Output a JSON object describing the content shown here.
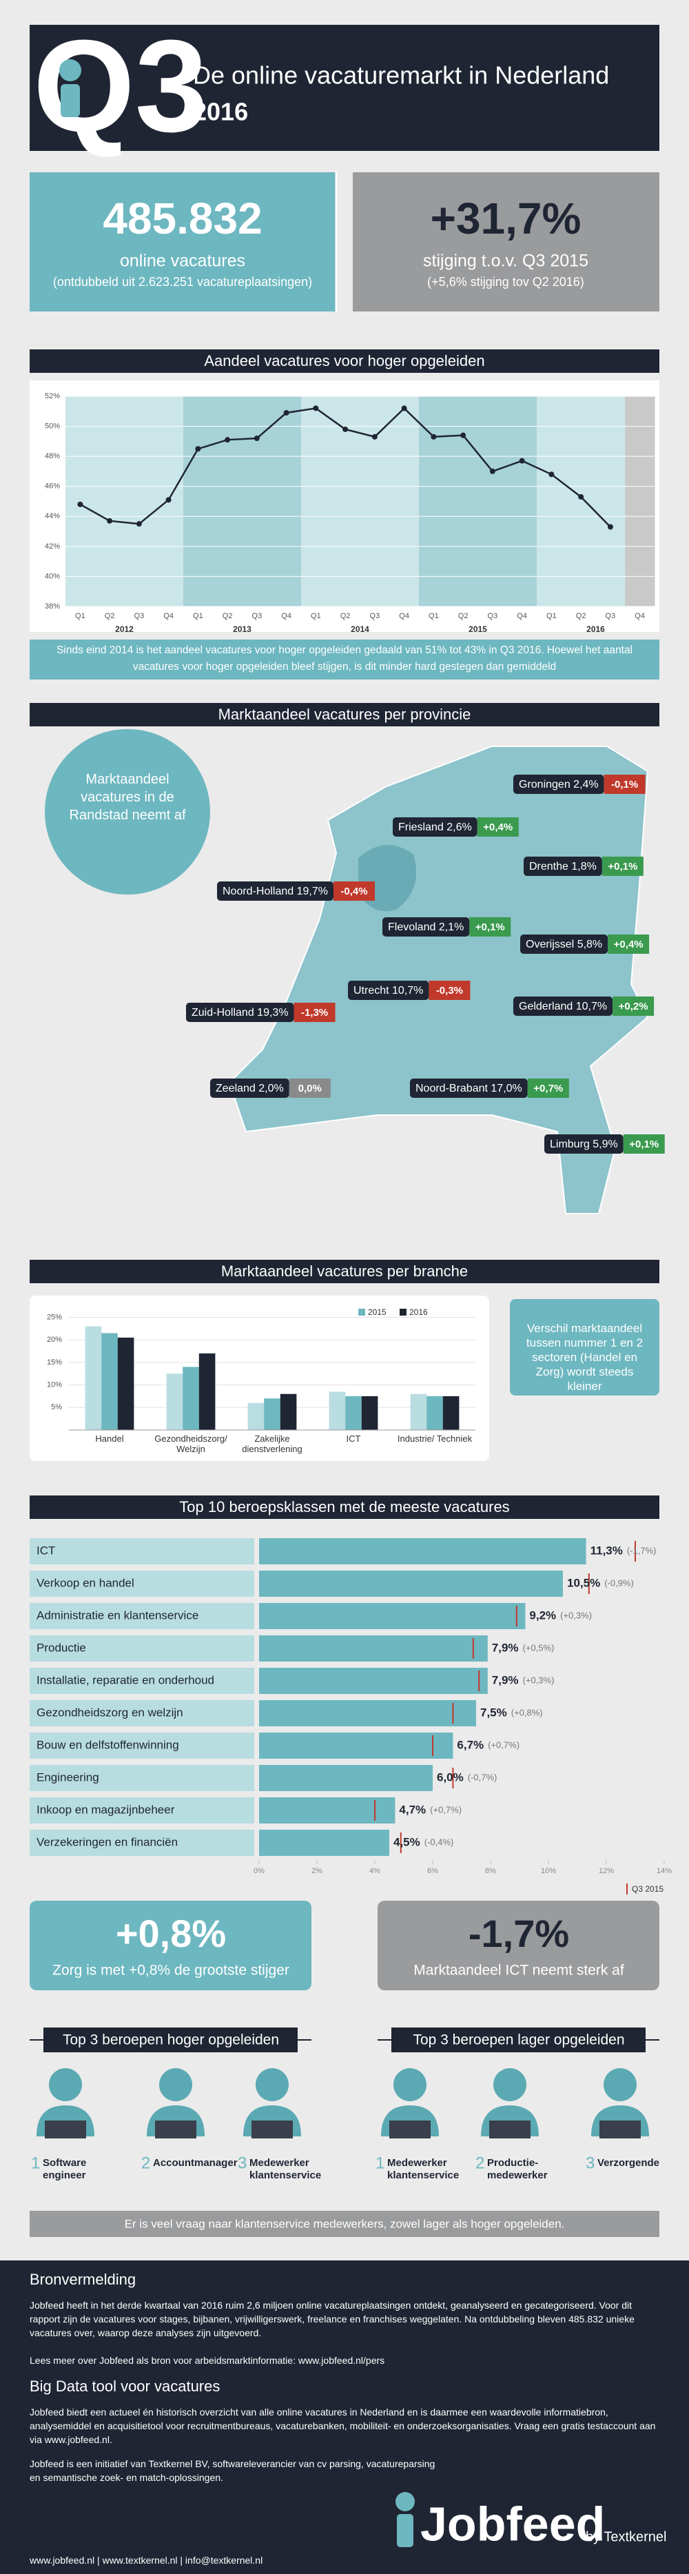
{
  "header": {
    "quarter": "Q3",
    "title": "De online vacaturemarkt in Nederland",
    "year": "2016"
  },
  "stats": [
    {
      "value": "485.832",
      "label": "online vacatures",
      "note": "(ontdubbeld uit 2.623.251 vacatureplaatsingen)"
    },
    {
      "value": "+31,7%",
      "label": "stijging t.o.v. Q3 2015",
      "note": "(+5,6% stijging tov Q2 2016)"
    }
  ],
  "chart_data": [
    {
      "type": "line",
      "title": "Aandeel vacatures voor hoger opgeleiden",
      "categories": [
        "Q1",
        "Q2",
        "Q3",
        "Q4",
        "Q1",
        "Q2",
        "Q3",
        "Q4",
        "Q1",
        "Q2",
        "Q3",
        "Q4",
        "Q1",
        "Q2",
        "Q3",
        "Q4",
        "Q1",
        "Q2",
        "Q3",
        "Q4"
      ],
      "year_labels": [
        "2012",
        "2013",
        "2014",
        "2015",
        "2016"
      ],
      "values": [
        44.8,
        43.7,
        43.5,
        45.1,
        48.5,
        49.1,
        49.2,
        50.9,
        51.2,
        49.8,
        49.3,
        51.2,
        49.3,
        49.4,
        47.0,
        47.7,
        46.8,
        45.3,
        43.3,
        null
      ],
      "color": "#1f2533",
      "ylim": [
        38,
        52
      ],
      "yticks": [
        {
          "value": 38,
          "label": "38%"
        },
        {
          "value": 40,
          "label": "40%"
        },
        {
          "value": 42,
          "label": "42%"
        },
        {
          "value": 44,
          "label": "44%"
        },
        {
          "value": 46,
          "label": "46%"
        },
        {
          "value": 48,
          "label": "48%"
        },
        {
          "value": 50,
          "label": "50%"
        },
        {
          "value": 52,
          "label": "52%"
        }
      ],
      "grid": true,
      "caption": "Sinds eind 2014 is het aandeel vacatures voor hoger opgeleiden gedaald van 51% tot 43% in Q3 2016. Hoewel het aantal vacatures voor hoger opgeleiden bleef stijgen, is dit minder hard gestegen dan gemiddeld"
    },
    {
      "type": "bar",
      "title": "Marktaandeel vacatures per branche",
      "categories": [
        "Handel",
        "Gezondheidszorg/ Welzijn",
        "Zakelijke dienstverlening",
        "ICT",
        "Industrie/ Techniek"
      ],
      "series": [
        {
          "color": "#b9dde1",
          "values": [
            23,
            12.5,
            6,
            8.5,
            8
          ]
        },
        {
          "name": "2015",
          "color": "#6db7c0",
          "values": [
            21.5,
            14,
            7,
            7.5,
            7.5
          ]
        },
        {
          "name": "2016",
          "color": "#1f2533",
          "values": [
            20.5,
            17,
            8,
            7.5,
            7.5
          ]
        }
      ],
      "ylim": [
        0,
        26
      ],
      "yticks": [
        {
          "value": 5,
          "label": "5%"
        },
        {
          "value": 10,
          "label": "10%"
        },
        {
          "value": 15,
          "label": "15%"
        },
        {
          "value": 20,
          "label": "20%"
        },
        {
          "value": 25,
          "label": "25%"
        }
      ],
      "grid": true,
      "note": "Verschil marktaandeel tussen nummer 1 en 2 sectoren (Handel en Zorg) wordt steeds kleiner"
    },
    {
      "type": "hbar",
      "title": "Top 10 beroepsklassen met de meeste vacatures",
      "categories": [
        "ICT",
        "Verkoop en handel",
        "Administratie en klantenservice",
        "Productie",
        "Installatie, reparatie en onderhoud",
        "Gezondheidszorg en welzijn",
        "Bouw en delfstoffenwinning",
        "Engineering",
        "Inkoop en magazijnbeheer",
        "Verzekeringen en financiën"
      ],
      "values": [
        11.3,
        10.5,
        9.2,
        7.9,
        7.9,
        7.5,
        6.7,
        6.0,
        4.7,
        4.5
      ],
      "value_labels": [
        "11,3%",
        "10,5%",
        "9,2%",
        "7,9%",
        "7,9%",
        "7,5%",
        "6,7%",
        "6,0%",
        "4,7%",
        "4,5%"
      ],
      "changes": [
        "(-1,7%)",
        "(-0,9%)",
        "(+0,3%)",
        "(+0,5%)",
        "(+0,3%)",
        "(+0,8%)",
        "(+0,7%)",
        "(-0,7%)",
        "(+0,7%)",
        "(-0,4%)"
      ],
      "color": "#6db7c0",
      "previous": {
        "name": "Q3 2015",
        "color": "#c0392b",
        "values": [
          13.0,
          11.4,
          8.9,
          7.4,
          7.6,
          6.7,
          6.0,
          6.7,
          4.0,
          4.9
        ]
      },
      "xlim": [
        0,
        14
      ],
      "xticks": [
        {
          "value": 0,
          "label": "0%"
        },
        {
          "value": 2,
          "label": "2%"
        },
        {
          "value": 4,
          "label": "4%"
        },
        {
          "value": 6,
          "label": "6%"
        },
        {
          "value": 8,
          "label": "8%"
        },
        {
          "value": 10,
          "label": "10%"
        },
        {
          "value": 12,
          "label": "12%"
        },
        {
          "value": 14,
          "label": "14%"
        }
      ]
    }
  ],
  "provinces": {
    "title": "Marktaandeel vacatures per provincie",
    "note": "Marktaandeel vacatures in de Randstad neemt af",
    "items": [
      {
        "name": "Groningen",
        "share": "2,4%",
        "change": "-0,1%"
      },
      {
        "name": "Friesland",
        "share": "2,6%",
        "change": "+0,4%"
      },
      {
        "name": "Drenthe",
        "share": "1,8%",
        "change": "+0,1%"
      },
      {
        "name": "Noord-Holland",
        "share": "19,7%",
        "change": "-0,4%"
      },
      {
        "name": "Flevoland",
        "share": "2,1%",
        "change": "+0,1%"
      },
      {
        "name": "Overijssel",
        "share": "5,8%",
        "change": "+0,4%"
      },
      {
        "name": "Utrecht",
        "share": "10,7%",
        "change": "-0,3%"
      },
      {
        "name": "Zuid-Holland",
        "share": "19,3%",
        "change": "-1,3%"
      },
      {
        "name": "Gelderland",
        "share": "10,7%",
        "change": "+0,2%"
      },
      {
        "name": "Zeeland",
        "share": "2,0%",
        "change": "0,0%"
      },
      {
        "name": "Noord-Brabant",
        "share": "17,0%",
        "change": "+0,7%"
      },
      {
        "name": "Limburg",
        "share": "5,9%",
        "change": "+0,1%"
      }
    ]
  },
  "highlights": [
    {
      "value": "+0,8%",
      "label": "Zorg is met +0,8% de grootste stijger"
    },
    {
      "value": "-1,7%",
      "label": "Marktaandeel ICT neemt sterk af"
    }
  ],
  "top3": [
    {
      "title": "Top 3 beroepen hoger opgeleiden",
      "items": [
        {
          "rank": "1",
          "name": "Software engineer"
        },
        {
          "rank": "2",
          "name": "Accountmanager"
        },
        {
          "rank": "3",
          "name": "Medewerker klantenservice"
        }
      ]
    },
    {
      "title": "Top 3 beroepen lager opgeleiden",
      "items": [
        {
          "rank": "1",
          "name": "Medewerker klantenservice"
        },
        {
          "rank": "2",
          "name": "Productie-medewerker"
        },
        {
          "rank": "3",
          "name": "Verzorgende"
        }
      ]
    }
  ],
  "banner": "Er is veel vraag naar klantenservice medewerkers, zowel lager als hoger opgeleiden.",
  "footer": {
    "source_title": "Bronvermelding",
    "source_text": "Jobfeed heeft in het derde kwartaal van 2016 ruim 2,6 miljoen online vacatureplaatsingen ontdekt, geanalyseerd en gecategoriseerd. Voor dit rapport zijn de vacatures voor stages, bijbanen, vrijwilligerswerk, freelance en franchises weggelaten. Na ontdubbeling bleven 485.832 unieke vacatures over, waarop deze analyses zijn uitgevoerd.",
    "read_more": "Lees meer over Jobfeed als bron voor arbeidsmarktinformatie: www.jobfeed.nl/pers",
    "tool_title": "Big Data tool voor vacatures",
    "tool_text": "Jobfeed biedt een actueel én historisch overzicht van alle online vacatures in Nederland en is daarmee een waardevolle informatiebron, analysemiddel en acquisitietool voor recruitmentbureaus, vacaturebanken, mobiliteit- en onderzoeksorganisaties. Vraag een gratis testaccount aan via www.jobfeed.nl.",
    "initiative": "Jobfeed is een initiatief van Textkernel BV, softwareleverancier van cv parsing, vacatureparsing en semantische zoek- en match-oplossingen.",
    "links": "www.jobfeed.nl | www.textkernel.nl | info@textkernel.nl",
    "logo": "Jobfeed",
    "logo_by": "by Textkernel"
  }
}
